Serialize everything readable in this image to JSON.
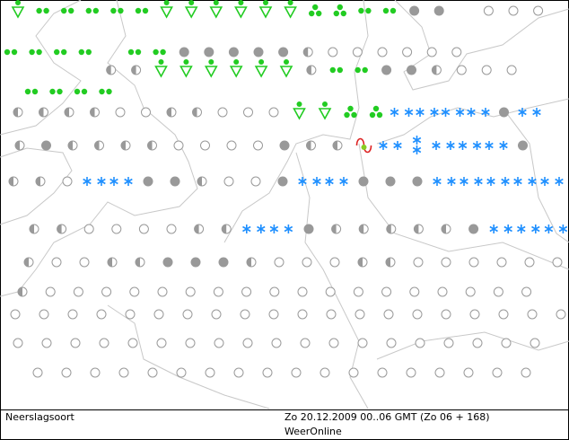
{
  "footer": {
    "map_type": "Neerslagsoort",
    "valid_time": "Zo 20.12.2009 00..06 GMT (Zo 06 + 168)",
    "source": "WeerOnline"
  }
}
